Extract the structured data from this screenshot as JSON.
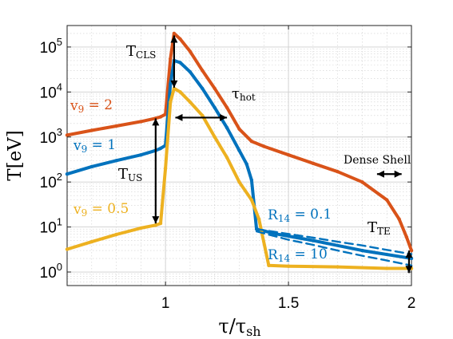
{
  "chart_data": {
    "type": "line",
    "x_scale": "linear",
    "y_scale": "log",
    "xlim": [
      0.6,
      2.0
    ],
    "ylim": [
      0.5,
      300000
    ],
    "grid": true,
    "xticks": [
      1,
      1.5,
      2
    ],
    "xtick_labels": [
      "1",
      "1.5",
      "2"
    ],
    "yticks": [
      1,
      10,
      100,
      1000,
      10000,
      100000
    ],
    "ytick_labels": [
      {
        "base": "10",
        "exp": "0"
      },
      {
        "base": "10",
        "exp": "1"
      },
      {
        "base": "10",
        "exp": "2"
      },
      {
        "base": "10",
        "exp": "3"
      },
      {
        "base": "10",
        "exp": "4"
      },
      {
        "base": "10",
        "exp": "5"
      }
    ],
    "xlabel": {
      "main": "τ/τ",
      "sub": "sh"
    },
    "ylabel": "T[eV]",
    "series": [
      {
        "name": "v9 = 2",
        "color": "#D95319",
        "style": "solid",
        "x": [
          0.6,
          0.7,
          0.8,
          0.9,
          0.96,
          0.98,
          1.0,
          1.02,
          1.035,
          1.06,
          1.1,
          1.15,
          1.2,
          1.25,
          1.3,
          1.35,
          1.4,
          1.5,
          1.6,
          1.7,
          1.8,
          1.9,
          1.95,
          1.98,
          2.0
        ],
        "y": [
          1100,
          1400,
          1750,
          2200,
          2600,
          2800,
          3200,
          55000,
          200000,
          150000,
          80000,
          30000,
          12000,
          4500,
          1500,
          800,
          620,
          400,
          260,
          170,
          100,
          40,
          15,
          6,
          3
        ]
      },
      {
        "name": "v9 = 1",
        "color": "#0072BD",
        "style": "solid",
        "x": [
          0.6,
          0.7,
          0.8,
          0.9,
          0.96,
          0.98,
          1.0,
          1.02,
          1.035,
          1.06,
          1.1,
          1.15,
          1.2,
          1.25,
          1.3,
          1.33,
          1.35,
          1.37,
          1.45,
          1.6,
          1.8,
          2.0
        ],
        "y": [
          150,
          220,
          300,
          400,
          500,
          560,
          650,
          15000,
          50000,
          45000,
          28000,
          12000,
          4500,
          1600,
          500,
          250,
          110,
          9,
          7,
          5,
          3,
          2
        ]
      },
      {
        "name": "v9 = 0.5",
        "color": "#EDB120",
        "style": "solid",
        "x": [
          0.6,
          0.7,
          0.8,
          0.9,
          0.96,
          0.98,
          1.0,
          1.02,
          1.035,
          1.06,
          1.1,
          1.15,
          1.2,
          1.25,
          1.3,
          1.35,
          1.38,
          1.42,
          1.5,
          1.7,
          1.9,
          2.0
        ],
        "y": [
          3.2,
          4.7,
          6.8,
          9.5,
          11,
          12,
          200,
          6000,
          12000,
          10000,
          6000,
          3000,
          1000,
          350,
          100,
          40,
          15,
          1.4,
          1.35,
          1.3,
          1.2,
          1.2
        ]
      },
      {
        "name": "R14 = 0.1",
        "color": "#0072BD",
        "style": "dashed",
        "x": [
          1.37,
          1.5,
          1.6,
          1.7,
          1.8,
          1.9,
          2.0
        ],
        "y": [
          9,
          7,
          5.8,
          4.7,
          3.9,
          3.1,
          2.5
        ]
      },
      {
        "name": "R14 = 10",
        "color": "#0072BD",
        "style": "dashed",
        "x": [
          1.37,
          1.5,
          1.6,
          1.7,
          1.8,
          1.9,
          2.0
        ],
        "y": [
          8,
          5.2,
          4,
          3,
          2.3,
          1.8,
          1.4
        ]
      }
    ],
    "annotations": [
      {
        "key": "tcls",
        "text": "T",
        "sub": "CLS",
        "color": "#000000"
      },
      {
        "key": "thot",
        "text": "τ",
        "sub": "hot",
        "color": "#000000"
      },
      {
        "key": "tus",
        "text": "T",
        "sub": "US",
        "color": "#000000"
      },
      {
        "key": "tte",
        "text": "T",
        "sub": "TE",
        "color": "#000000"
      },
      {
        "key": "dense",
        "text": "Dense Shell",
        "color": "#000000"
      },
      {
        "key": "v9_2",
        "text": "v",
        "sub": "9",
        "tail": " = 2",
        "color": "#D95319"
      },
      {
        "key": "v9_1",
        "text": "v",
        "sub": "9",
        "tail": " = 1",
        "color": "#0072BD"
      },
      {
        "key": "v9_05",
        "text": "v",
        "sub": "9",
        "tail": " = 0.5",
        "color": "#EDB120"
      },
      {
        "key": "r14_01",
        "text": "R",
        "sub": "14",
        "tail": " = 0.1",
        "color": "#0072BD"
      },
      {
        "key": "r14_10",
        "text": "R",
        "sub": "14",
        "tail": " = 10",
        "color": "#0072BD"
      }
    ]
  }
}
